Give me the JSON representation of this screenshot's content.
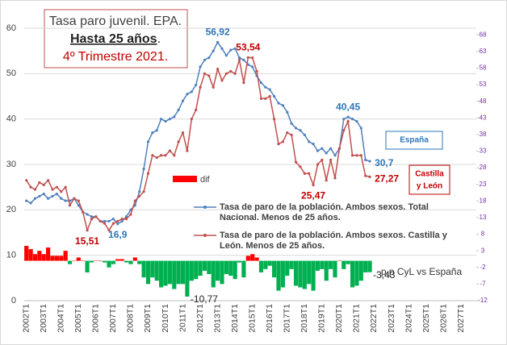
{
  "chart_data": {
    "type": "line",
    "title": {
      "line1": "Tasa paro juvenil. EPA.",
      "line2_bold": "Hasta 25 años",
      "line2_rest": ".",
      "line3": "4º Trimestre 2021."
    },
    "categories": [
      "2002T1",
      null,
      null,
      null,
      "2003T1",
      null,
      null,
      null,
      "2004T1",
      null,
      null,
      null,
      "2005T1",
      null,
      null,
      null,
      "2006T1",
      null,
      null,
      null,
      "2007T1",
      null,
      null,
      null,
      "2008T1",
      null,
      null,
      null,
      "2009T1",
      null,
      null,
      null,
      "2010T1",
      null,
      null,
      null,
      "2011T1",
      null,
      null,
      null,
      "2012T1",
      null,
      null,
      null,
      "2013T1",
      null,
      null,
      null,
      "2014T1",
      null,
      null,
      null,
      "2015T1",
      null,
      null,
      null,
      "2016T1",
      null,
      null,
      null,
      "2017T1",
      null,
      null,
      null,
      "2018T1",
      null,
      null,
      null,
      "2019T1",
      null,
      null,
      null,
      "2020T1",
      null,
      null,
      null,
      "2021T1",
      null,
      null,
      null,
      "2022T1",
      null,
      null,
      null,
      "2023T1",
      null,
      null,
      null,
      "2024T1",
      null,
      null,
      null,
      "2025T1",
      null,
      null,
      null,
      "2026T1",
      null,
      null,
      null,
      "2027T1",
      null,
      null,
      null
    ],
    "series": [
      {
        "name": "Tasa de paro de la población. Ambos sexos. Total Nacional. Menos de 25 años.",
        "color": "#4f81bd",
        "label_color": "#2e75b6",
        "values": [
          22,
          21.5,
          22.5,
          23,
          23.5,
          22.5,
          23,
          23.5,
          22.5,
          22,
          22,
          22.5,
          21,
          19.5,
          19,
          18.5,
          18.5,
          17.5,
          17.5,
          17.5,
          18,
          16.9,
          17.5,
          18.5,
          20,
          21,
          24,
          29,
          35,
          37,
          37.5,
          40,
          39.5,
          40,
          40.5,
          42,
          44,
          45.5,
          46,
          47.5,
          51.5,
          53,
          53.5,
          55,
          56.92,
          55.5,
          54,
          55.2,
          55.5,
          53.5,
          53,
          52,
          51.5,
          49.5,
          48,
          47,
          46.5,
          45,
          43.5,
          43,
          41.5,
          39,
          38,
          37.5,
          36.5,
          35,
          34.5,
          33,
          33.5,
          32.5,
          33.5,
          32,
          33.5,
          40,
          40.45,
          40,
          39.5,
          38,
          31,
          30.7,
          null,
          null,
          null,
          null,
          null,
          null,
          null,
          null,
          null,
          null,
          null,
          null,
          null,
          null,
          null,
          null,
          null,
          null,
          null,
          null,
          null,
          null,
          null,
          null
        ],
        "value_labels": [
          null,
          null,
          null,
          null,
          null,
          null,
          null,
          null,
          null,
          null,
          null,
          null,
          null,
          null,
          null,
          null,
          null,
          null,
          null,
          null,
          null,
          "16,9",
          null,
          null,
          null,
          null,
          null,
          null,
          null,
          null,
          null,
          null,
          null,
          null,
          null,
          null,
          null,
          null,
          null,
          null,
          null,
          null,
          null,
          null,
          "56,92",
          null,
          null,
          null,
          null,
          null,
          null,
          null,
          null,
          null,
          null,
          null,
          null,
          null,
          null,
          null,
          null,
          null,
          null,
          null,
          null,
          null,
          null,
          null,
          null,
          null,
          null,
          null,
          null,
          null,
          "40,45",
          null,
          null,
          null,
          null,
          "30,7",
          null,
          null,
          null,
          null,
          null,
          null,
          null,
          null,
          null,
          null,
          null,
          null,
          null,
          null,
          null,
          null,
          null,
          null,
          null,
          null,
          null,
          null,
          null,
          null
        ]
      },
      {
        "name": "Tasa de paro de la población. Ambos sexos. Castilla y León. Menos de 25 años.",
        "color": "#c0504d",
        "label_color": "#c00000",
        "values": [
          26.5,
          25,
          24.5,
          26,
          25.5,
          26.5,
          24.5,
          25,
          24,
          25,
          21,
          22.5,
          22,
          19.5,
          15.51,
          18,
          18.5,
          17.5,
          17,
          15.5,
          17,
          17.5,
          18,
          18,
          19,
          22,
          23,
          24,
          28,
          32,
          31.5,
          32,
          32,
          33,
          32,
          35,
          37,
          33,
          40,
          42,
          47,
          50,
          49.5,
          47,
          51,
          48.5,
          50,
          50.5,
          50,
          53,
          48,
          53.54,
          53.5,
          50.5,
          44.5,
          44.5,
          45,
          40,
          34.5,
          35,
          37,
          36.5,
          30.5,
          29.5,
          28,
          28,
          25.47,
          30,
          31,
          26.5,
          31,
          27,
          33.5,
          37.5,
          39.5,
          32,
          32,
          32,
          27.5,
          27.27,
          null,
          null,
          null,
          null,
          null,
          null,
          null,
          null,
          null,
          null,
          null,
          null,
          null,
          null,
          null,
          null,
          null,
          null,
          null,
          null,
          null,
          null,
          null,
          null
        ],
        "value_labels": [
          null,
          null,
          null,
          null,
          null,
          null,
          null,
          null,
          null,
          null,
          null,
          null,
          null,
          null,
          "15,51",
          null,
          null,
          null,
          null,
          null,
          null,
          null,
          null,
          null,
          null,
          null,
          null,
          null,
          null,
          null,
          null,
          null,
          null,
          null,
          null,
          null,
          null,
          null,
          null,
          null,
          null,
          null,
          null,
          null,
          null,
          null,
          null,
          null,
          null,
          null,
          null,
          "53,54",
          null,
          null,
          null,
          null,
          null,
          null,
          null,
          null,
          null,
          null,
          null,
          null,
          null,
          null,
          "25,47",
          null,
          null,
          null,
          null,
          null,
          null,
          null,
          null,
          null,
          null,
          null,
          null,
          "27,27",
          null,
          null,
          null,
          null,
          null,
          null,
          null,
          null,
          null,
          null,
          null,
          null,
          null,
          null,
          null,
          null,
          null,
          null,
          null,
          null,
          null,
          null,
          null,
          null
        ]
      },
      {
        "name": "dif",
        "type": "bar",
        "axis": "y2",
        "color": "#ff0000",
        "negative_color": "#00b050",
        "values": [
          4.5,
          3.5,
          2,
          3,
          2,
          4,
          1.5,
          1.5,
          1.5,
          3,
          -1,
          0,
          1,
          0,
          -3.5,
          -0.5,
          0,
          0,
          -0.5,
          -2,
          -1,
          0.5,
          0.5,
          -0.5,
          -1,
          1,
          -1,
          -5,
          -7,
          -5,
          -6,
          -8,
          -7.5,
          -7,
          -8.5,
          -7,
          -7,
          -10.77,
          -6,
          -5.5,
          -4.5,
          -3,
          -4,
          -8,
          -6,
          -7,
          -4,
          -4.5,
          -5.5,
          -0.5,
          -5,
          1.5,
          2,
          1,
          -3.5,
          -2.5,
          -1.5,
          -5,
          -9,
          -8,
          -4.5,
          -2.5,
          -7.5,
          -8,
          -8.5,
          -7,
          -9,
          -3,
          -2.5,
          -6,
          -2.5,
          -5,
          0,
          -2.5,
          -1,
          -8,
          -7.5,
          -6,
          -3.5,
          -3.43,
          null,
          null,
          null,
          null,
          null,
          null,
          null,
          null,
          null,
          null,
          null,
          null,
          null,
          null,
          null,
          null,
          null,
          null,
          null,
          null,
          null,
          null,
          null,
          null
        ],
        "value_labels": [
          null,
          null,
          null,
          null,
          null,
          null,
          null,
          null,
          null,
          null,
          null,
          null,
          null,
          null,
          null,
          null,
          null,
          null,
          null,
          null,
          null,
          null,
          null,
          null,
          null,
          null,
          null,
          null,
          null,
          null,
          null,
          null,
          null,
          null,
          null,
          null,
          null,
          "-10,77",
          null,
          null,
          null,
          null,
          null,
          null,
          null,
          null,
          null,
          null,
          null,
          null,
          null,
          null,
          null,
          null,
          null,
          null,
          null,
          null,
          null,
          null,
          null,
          null,
          null,
          null,
          null,
          null,
          null,
          null,
          null,
          null,
          null,
          null,
          null,
          null,
          null,
          null,
          null,
          null,
          null,
          "-3,43",
          null,
          null,
          null,
          null,
          null,
          null,
          null,
          null,
          null,
          null,
          null,
          null,
          null,
          null,
          null,
          null,
          null,
          null,
          null,
          null,
          null,
          null,
          null,
          null
        ]
      }
    ],
    "ylim": [
      0,
      60
    ],
    "yticks": [
      0,
      10,
      20,
      30,
      40,
      50,
      60
    ],
    "y2lim": [
      -12,
      70
    ],
    "y2ticks": [
      -12,
      -7,
      -2,
      3,
      8,
      13,
      18,
      23,
      28,
      33,
      38,
      43,
      48,
      53,
      58,
      63,
      68
    ],
    "grid": true,
    "annotations": {
      "spain": "España",
      "cyl_line1": "Castilla",
      "cyl_line2": "y León",
      "diff_axis": "p.p CyL vs España"
    }
  }
}
